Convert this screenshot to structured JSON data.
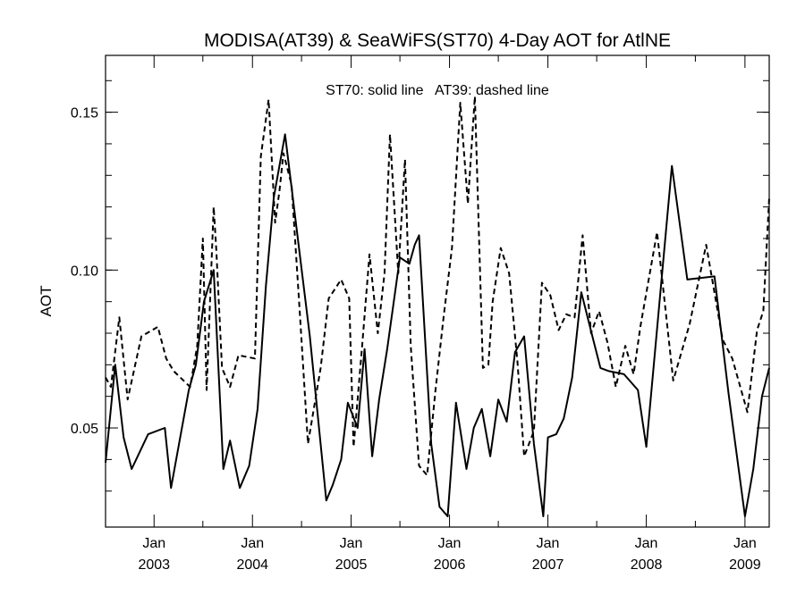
{
  "chart_data": {
    "type": "line",
    "title": "MODISA(AT39) & SeaWiFS(ST70) 4-Day AOT for AtlNE",
    "ylabel": "AOT",
    "xlabel": "",
    "legend_text": "ST70: solid line   AT39: dashed line",
    "xlim": [
      "2002-07-05",
      "2009-04-01"
    ],
    "ylim": [
      0.0186,
      0.168
    ],
    "y_ticks": [
      {
        "value": 0.05,
        "label": "0.05"
      },
      {
        "value": 0.1,
        "label": "0.10"
      },
      {
        "value": 0.15,
        "label": "0.15"
      }
    ],
    "y_minor_ticks": [
      0.03,
      0.04,
      0.05,
      0.06,
      0.07,
      0.08,
      0.09,
      0.1,
      0.11,
      0.12,
      0.13,
      0.14,
      0.15,
      0.16
    ],
    "x_ticks": [
      {
        "date": "2003-01-01",
        "month": "Jan",
        "year": "2003"
      },
      {
        "date": "2004-01-01",
        "month": "Jan",
        "year": "2004"
      },
      {
        "date": "2005-01-01",
        "month": "Jan",
        "year": "2005"
      },
      {
        "date": "2006-01-01",
        "month": "Jan",
        "year": "2006"
      },
      {
        "date": "2007-01-01",
        "month": "Jan",
        "year": "2007"
      },
      {
        "date": "2008-01-01",
        "month": "Jan",
        "year": "2008"
      },
      {
        "date": "2009-01-01",
        "month": "Jan",
        "year": "2009"
      }
    ],
    "grid": false,
    "series": [
      {
        "name": "ST70",
        "style": "solid",
        "color": "#000000",
        "x": [
          "2002-07-05",
          "2002-08-10",
          "2002-09-10",
          "2002-10-10",
          "2002-12-10",
          "2003-02-10",
          "2003-03-05",
          "2003-05-10",
          "2003-06-05",
          "2003-07-05",
          "2003-08-10",
          "2003-09-15",
          "2003-10-10",
          "2003-11-15",
          "2003-12-20",
          "2004-01-20",
          "2004-02-20",
          "2004-03-20",
          "2004-05-01",
          "2004-06-10",
          "2004-08-01",
          "2004-10-01",
          "2004-10-25",
          "2004-11-25",
          "2004-12-20",
          "2005-01-25",
          "2005-02-20",
          "2005-03-20",
          "2005-04-15",
          "2005-05-15",
          "2005-07-01",
          "2005-08-05",
          "2005-08-25",
          "2005-09-10",
          "2005-10-25",
          "2005-11-25",
          "2005-12-25",
          "2006-01-25",
          "2006-03-05",
          "2006-04-01",
          "2006-05-01",
          "2006-06-01",
          "2006-07-01",
          "2006-08-01",
          "2006-09-01",
          "2006-10-05",
          "2006-11-10",
          "2006-12-15",
          "2007-01-01",
          "2007-02-01",
          "2007-03-01",
          "2007-04-01",
          "2007-05-05",
          "2007-06-15",
          "2007-07-15",
          "2007-08-15",
          "2007-10-10",
          "2007-12-01",
          "2008-01-01",
          "2008-04-05",
          "2008-06-01",
          "2008-09-10",
          "2008-11-01",
          "2009-01-01",
          "2009-02-01",
          "2009-03-05",
          "2009-04-01"
        ],
        "values": [
          0.039,
          0.07,
          0.047,
          0.037,
          0.048,
          0.05,
          0.031,
          0.062,
          0.07,
          0.09,
          0.1,
          0.037,
          0.046,
          0.031,
          0.038,
          0.056,
          0.095,
          0.123,
          0.143,
          0.115,
          0.079,
          0.027,
          0.032,
          0.04,
          0.058,
          0.05,
          0.075,
          0.041,
          0.059,
          0.075,
          0.104,
          0.102,
          0.108,
          0.111,
          0.045,
          0.025,
          0.022,
          0.058,
          0.037,
          0.05,
          0.056,
          0.041,
          0.059,
          0.052,
          0.074,
          0.079,
          0.045,
          0.022,
          0.047,
          0.048,
          0.053,
          0.066,
          0.093,
          0.079,
          0.069,
          0.068,
          0.067,
          0.062,
          0.044,
          0.133,
          0.097,
          0.098,
          0.061,
          0.022,
          0.037,
          0.06,
          0.069
        ]
      },
      {
        "name": "AT39",
        "style": "dashed",
        "color": "#000000",
        "x": [
          "2002-07-05",
          "2002-07-25",
          "2002-08-25",
          "2002-09-25",
          "2002-11-15",
          "2003-01-15",
          "2003-02-15",
          "2003-03-15",
          "2003-05-15",
          "2003-06-10",
          "2003-07-01",
          "2003-07-15",
          "2003-08-10",
          "2003-08-20",
          "2003-09-10",
          "2003-10-10",
          "2003-11-10",
          "2004-01-10",
          "2004-02-01",
          "2004-03-01",
          "2004-03-25",
          "2004-04-10",
          "2004-04-25",
          "2004-05-25",
          "2004-06-25",
          "2004-07-25",
          "2004-09-10",
          "2004-10-10",
          "2004-11-25",
          "2004-12-25",
          "2005-01-10",
          "2005-02-10",
          "2005-03-10",
          "2005-04-10",
          "2005-05-05",
          "2005-05-25",
          "2005-06-25",
          "2005-07-20",
          "2005-08-10",
          "2005-09-10",
          "2005-10-10",
          "2005-11-10",
          "2005-12-10",
          "2006-01-10",
          "2006-02-10",
          "2006-03-10",
          "2006-04-05",
          "2006-05-05",
          "2006-05-25",
          "2006-06-10",
          "2006-07-10",
          "2006-08-10",
          "2006-09-10",
          "2006-10-05",
          "2006-11-10",
          "2006-12-10",
          "2007-01-10",
          "2007-02-10",
          "2007-03-10",
          "2007-04-10",
          "2007-05-10",
          "2007-06-10",
          "2007-07-10",
          "2007-08-10",
          "2007-09-10",
          "2007-10-15",
          "2007-11-15",
          "2007-12-10",
          "2008-02-10",
          "2008-04-10",
          "2008-06-10",
          "2008-08-10",
          "2008-10-10",
          "2008-11-15",
          "2009-01-10",
          "2009-02-15",
          "2009-03-10",
          "2009-04-01"
        ],
        "values": [
          0.066,
          0.063,
          0.085,
          0.059,
          0.079,
          0.082,
          0.072,
          0.068,
          0.063,
          0.076,
          0.11,
          0.062,
          0.12,
          0.106,
          0.069,
          0.063,
          0.073,
          0.072,
          0.136,
          0.154,
          0.115,
          0.125,
          0.137,
          0.127,
          0.086,
          0.045,
          0.069,
          0.091,
          0.097,
          0.091,
          0.044,
          0.075,
          0.105,
          0.08,
          0.099,
          0.143,
          0.099,
          0.135,
          0.076,
          0.038,
          0.035,
          0.062,
          0.085,
          0.107,
          0.153,
          0.121,
          0.155,
          0.069,
          0.07,
          0.09,
          0.107,
          0.099,
          0.071,
          0.041,
          0.049,
          0.096,
          0.092,
          0.081,
          0.086,
          0.085,
          0.111,
          0.08,
          0.087,
          0.077,
          0.063,
          0.076,
          0.067,
          0.082,
          0.112,
          0.065,
          0.083,
          0.108,
          0.078,
          0.072,
          0.055,
          0.081,
          0.087,
          0.123
        ]
      }
    ]
  }
}
